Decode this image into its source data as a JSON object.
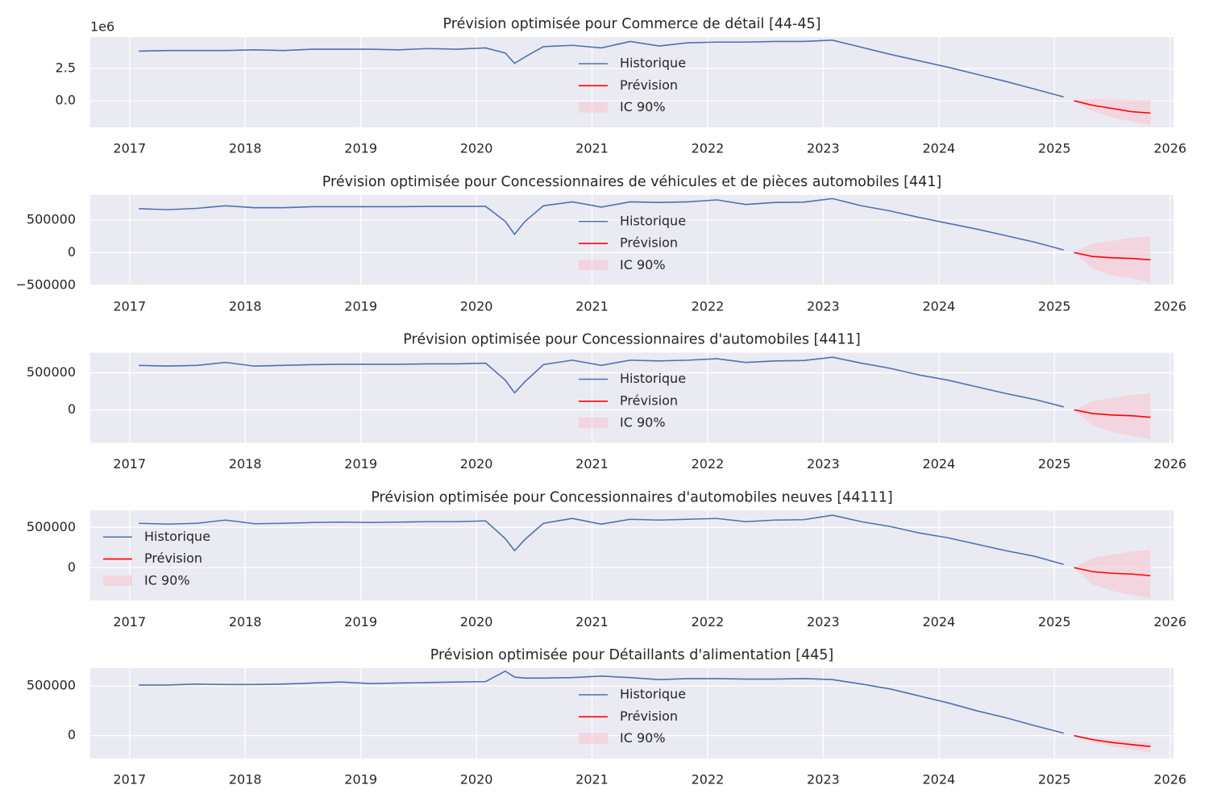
{
  "chart_data": [
    {
      "type": "line",
      "title": "Prévision optimisée pour Commerce de détail [44-45]",
      "offset_label": "1e6",
      "legend": "upper center",
      "grid": true,
      "xlim": [
        2016.66,
        2026.03
      ],
      "xticks": [
        2017,
        2018,
        2019,
        2020,
        2021,
        2022,
        2023,
        2024,
        2025,
        2026
      ],
      "ylim": [
        -2.06,
        4.94
      ],
      "yticks": [
        {
          "value": 0,
          "label": "0.0"
        },
        2.5
      ],
      "series": [
        {
          "name": "Historique",
          "color": "#4c72b0",
          "x": [
            2017.08,
            2017.33,
            2017.58,
            2017.83,
            2018.08,
            2018.33,
            2018.58,
            2018.83,
            2019.08,
            2019.33,
            2019.58,
            2019.83,
            2020.08,
            2020.25,
            2020.33,
            2020.42,
            2020.58,
            2020.83,
            2021.08,
            2021.33,
            2021.58,
            2021.83,
            2022.08,
            2022.33,
            2022.58,
            2022.83,
            2023.08,
            2023.33,
            2023.58,
            2023.83,
            2024.08,
            2024.33,
            2024.58,
            2024.83,
            2025.08
          ],
          "values": [
            3.85,
            3.9,
            3.9,
            3.9,
            3.95,
            3.9,
            4.0,
            4.0,
            4.0,
            3.95,
            4.05,
            4.0,
            4.1,
            3.7,
            2.9,
            3.4,
            4.2,
            4.3,
            4.1,
            4.6,
            4.25,
            4.5,
            4.55,
            4.55,
            4.6,
            4.6,
            4.7,
            4.15,
            3.6,
            3.1,
            2.6,
            2.05,
            1.5,
            0.9,
            0.3
          ]
        },
        {
          "name": "Prévision",
          "color": "#ff0000",
          "x": [
            2025.17,
            2025.33,
            2025.5,
            2025.67,
            2025.83
          ],
          "values": [
            0.0,
            -0.35,
            -0.6,
            -0.85,
            -0.95
          ]
        }
      ],
      "band": {
        "name": "IC 90%",
        "color": "#f7c6d2",
        "x": [
          2025.17,
          2025.33,
          2025.5,
          2025.67,
          2025.83
        ],
        "lower": [
          0.0,
          -0.8,
          -1.3,
          -1.6,
          -1.9
        ],
        "upper": [
          0.0,
          0.15,
          0.1,
          0.05,
          0.05
        ]
      }
    },
    {
      "type": "line",
      "title": "Prévision optimisée pour Concessionnaires de véhicules et de pièces automobiles [441]",
      "legend": "upper center",
      "grid": true,
      "xlim": [
        2016.66,
        2026.03
      ],
      "xticks": [
        2017,
        2018,
        2019,
        2020,
        2021,
        2022,
        2023,
        2024,
        2025,
        2026
      ],
      "ylim": [
        -500000,
        887500
      ],
      "yticks": [
        {
          "value": -500000,
          "label": "−500000"
        },
        0,
        500000
      ],
      "series": [
        {
          "name": "Historique",
          "color": "#4c72b0",
          "x": [
            2017.08,
            2017.33,
            2017.58,
            2017.83,
            2018.08,
            2018.33,
            2018.58,
            2018.83,
            2019.08,
            2019.33,
            2019.58,
            2019.83,
            2020.08,
            2020.25,
            2020.33,
            2020.42,
            2020.58,
            2020.83,
            2021.08,
            2021.33,
            2021.58,
            2021.83,
            2022.08,
            2022.33,
            2022.58,
            2022.83,
            2023.08,
            2023.33,
            2023.58,
            2023.83,
            2024.08,
            2024.33,
            2024.58,
            2024.83,
            2025.08
          ],
          "values": [
            675000,
            660000,
            680000,
            720000,
            690000,
            690000,
            705000,
            705000,
            705000,
            705000,
            710000,
            710000,
            710000,
            480000,
            280000,
            480000,
            720000,
            780000,
            700000,
            780000,
            770000,
            780000,
            810000,
            740000,
            770000,
            775000,
            830000,
            720000,
            640000,
            540000,
            450000,
            360000,
            260000,
            160000,
            40000
          ]
        },
        {
          "name": "Prévision",
          "color": "#ff0000",
          "x": [
            2025.17,
            2025.33,
            2025.5,
            2025.67,
            2025.83
          ],
          "values": [
            0,
            -60000,
            -80000,
            -90000,
            -110000
          ]
        }
      ],
      "band": {
        "name": "IC 90%",
        "color": "#f7c6d2",
        "x": [
          2025.17,
          2025.33,
          2025.5,
          2025.67,
          2025.83
        ],
        "lower": [
          0,
          -250000,
          -350000,
          -400000,
          -460000
        ],
        "upper": [
          0,
          140000,
          180000,
          230000,
          250000
        ]
      }
    },
    {
      "type": "line",
      "title": "Prévision optimisée pour Concessionnaires d'automobiles [4411]",
      "legend": "upper center",
      "grid": true,
      "xlim": [
        2016.66,
        2026.03
      ],
      "xticks": [
        2017,
        2018,
        2019,
        2020,
        2021,
        2022,
        2023,
        2024,
        2025,
        2026
      ],
      "ylim": [
        -446000,
        772000
      ],
      "yticks": [
        0,
        500000
      ],
      "series": [
        {
          "name": "Historique",
          "color": "#4c72b0",
          "x": [
            2017.08,
            2017.33,
            2017.58,
            2017.83,
            2018.08,
            2018.33,
            2018.58,
            2018.83,
            2019.08,
            2019.33,
            2019.58,
            2019.83,
            2020.08,
            2020.25,
            2020.33,
            2020.42,
            2020.58,
            2020.83,
            2021.08,
            2021.33,
            2021.58,
            2021.83,
            2022.08,
            2022.33,
            2022.58,
            2022.83,
            2023.08,
            2023.33,
            2023.58,
            2023.83,
            2024.08,
            2024.33,
            2024.58,
            2024.83,
            2025.08
          ],
          "values": [
            600000,
            590000,
            600000,
            640000,
            590000,
            600000,
            610000,
            615000,
            615000,
            615000,
            620000,
            620000,
            630000,
            400000,
            230000,
            380000,
            610000,
            670000,
            600000,
            670000,
            660000,
            670000,
            690000,
            640000,
            660000,
            665000,
            710000,
            630000,
            560000,
            470000,
            400000,
            310000,
            220000,
            140000,
            40000
          ]
        },
        {
          "name": "Prévision",
          "color": "#ff0000",
          "x": [
            2025.17,
            2025.33,
            2025.5,
            2025.67,
            2025.83
          ],
          "values": [
            0,
            -50000,
            -70000,
            -80000,
            -100000
          ]
        }
      ],
      "band": {
        "name": "IC 90%",
        "color": "#f7c6d2",
        "x": [
          2025.17,
          2025.33,
          2025.5,
          2025.67,
          2025.83
        ],
        "lower": [
          0,
          -210000,
          -300000,
          -350000,
          -400000
        ],
        "upper": [
          0,
          120000,
          160000,
          200000,
          220000
        ]
      }
    },
    {
      "type": "line",
      "title": "Prévision optimisée pour Concessionnaires d'automobiles neuves [44111]",
      "legend": "upper left",
      "grid": true,
      "xlim": [
        2016.66,
        2026.03
      ],
      "xticks": [
        2017,
        2018,
        2019,
        2020,
        2021,
        2022,
        2023,
        2024,
        2025,
        2026
      ],
      "ylim": [
        -410000,
        710000
      ],
      "yticks": [
        0,
        500000
      ],
      "series": [
        {
          "name": "Historique",
          "color": "#4c72b0",
          "x": [
            2017.08,
            2017.33,
            2017.58,
            2017.83,
            2018.08,
            2018.33,
            2018.58,
            2018.83,
            2019.08,
            2019.33,
            2019.58,
            2019.83,
            2020.08,
            2020.25,
            2020.33,
            2020.42,
            2020.58,
            2020.83,
            2021.08,
            2021.33,
            2021.58,
            2021.83,
            2022.08,
            2022.33,
            2022.58,
            2022.83,
            2023.08,
            2023.33,
            2023.58,
            2023.83,
            2024.08,
            2024.33,
            2024.58,
            2024.83,
            2025.08
          ],
          "values": [
            550000,
            540000,
            550000,
            590000,
            545000,
            550000,
            560000,
            565000,
            560000,
            565000,
            570000,
            570000,
            580000,
            360000,
            210000,
            350000,
            550000,
            610000,
            540000,
            600000,
            590000,
            600000,
            610000,
            570000,
            590000,
            595000,
            650000,
            570000,
            510000,
            430000,
            370000,
            290000,
            210000,
            140000,
            40000
          ]
        },
        {
          "name": "Prévision",
          "color": "#ff0000",
          "x": [
            2025.17,
            2025.33,
            2025.5,
            2025.67,
            2025.83
          ],
          "values": [
            0,
            -50000,
            -70000,
            -80000,
            -100000
          ]
        }
      ],
      "band": {
        "name": "IC 90%",
        "color": "#f7c6d2",
        "x": [
          2025.17,
          2025.33,
          2025.5,
          2025.67,
          2025.83
        ],
        "lower": [
          0,
          -210000,
          -290000,
          -340000,
          -380000
        ],
        "upper": [
          0,
          120000,
          160000,
          200000,
          220000
        ]
      }
    },
    {
      "type": "line",
      "title": "Prévision optimisée pour Détaillants d'alimentation [445]",
      "legend": "upper center",
      "grid": true,
      "xlim": [
        2016.66,
        2026.03
      ],
      "xticks": [
        2017,
        2018,
        2019,
        2020,
        2021,
        2022,
        2023,
        2024,
        2025,
        2026
      ],
      "ylim": [
        -230000,
        680000
      ],
      "yticks": [
        0,
        500000
      ],
      "series": [
        {
          "name": "Historique",
          "color": "#4c72b0",
          "x": [
            2017.08,
            2017.33,
            2017.58,
            2017.83,
            2018.08,
            2018.33,
            2018.58,
            2018.83,
            2019.08,
            2019.33,
            2019.58,
            2019.83,
            2020.08,
            2020.25,
            2020.33,
            2020.42,
            2020.58,
            2020.83,
            2021.08,
            2021.33,
            2021.58,
            2021.83,
            2022.08,
            2022.33,
            2022.58,
            2022.83,
            2023.08,
            2023.33,
            2023.58,
            2023.83,
            2024.08,
            2024.33,
            2024.58,
            2024.83,
            2025.08
          ],
          "values": [
            510000,
            510000,
            520000,
            515000,
            515000,
            520000,
            530000,
            540000,
            525000,
            530000,
            535000,
            540000,
            545000,
            650000,
            590000,
            580000,
            580000,
            585000,
            600000,
            585000,
            565000,
            575000,
            575000,
            570000,
            570000,
            575000,
            565000,
            520000,
            470000,
            400000,
            330000,
            250000,
            180000,
            100000,
            25000
          ]
        },
        {
          "name": "Prévision",
          "color": "#ff0000",
          "x": [
            2025.17,
            2025.33,
            2025.5,
            2025.67,
            2025.83
          ],
          "values": [
            0,
            -40000,
            -70000,
            -90000,
            -110000
          ]
        }
      ],
      "band": {
        "name": "IC 90%",
        "color": "#f7c6d2",
        "x": [
          2025.17,
          2025.33,
          2025.5,
          2025.67,
          2025.83
        ],
        "lower": [
          0,
          -70000,
          -110000,
          -140000,
          -170000
        ],
        "upper": [
          0,
          -20000,
          -40000,
          -55000,
          -70000
        ]
      }
    }
  ]
}
